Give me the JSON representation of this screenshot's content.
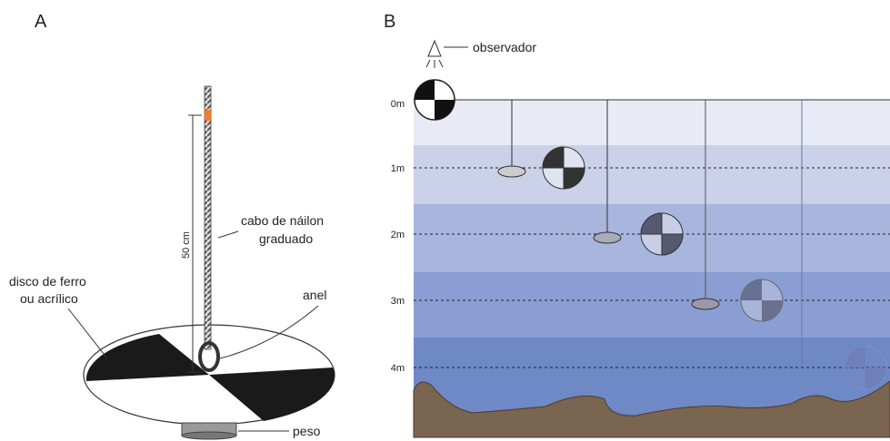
{
  "panel_a": {
    "label": "A",
    "rope_label": [
      "cabo de náilon",
      "graduado"
    ],
    "length_label": "50 cm",
    "disk_label": [
      "disco de ferro",
      "ou acrílico"
    ],
    "ring_label": "anel",
    "weight_label": "peso"
  },
  "panel_b": {
    "label": "B",
    "observer_label": "observador",
    "depth_labels": [
      "0m",
      "1m",
      "2m",
      "3m",
      "4m"
    ]
  }
}
